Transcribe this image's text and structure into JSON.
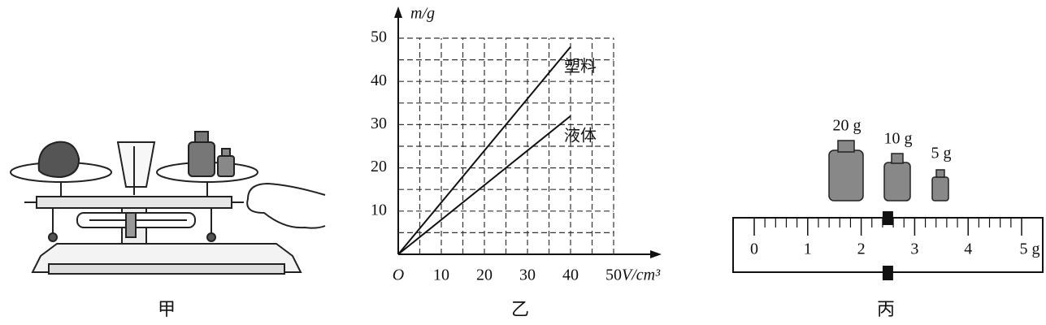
{
  "panel_a": {
    "caption": "甲"
  },
  "chart_data": {
    "type": "line",
    "caption": "乙",
    "origin_label": "O",
    "x_label": "V/cm³",
    "y_label": "m/g",
    "xlim": [
      0,
      50
    ],
    "ylim": [
      0,
      50
    ],
    "xticks": [
      10,
      20,
      30,
      40,
      50
    ],
    "yticks": [
      10,
      20,
      30,
      40,
      50
    ],
    "grid": true,
    "x": [
      0,
      40
    ],
    "series": [
      {
        "name": "塑料",
        "color": "#111111",
        "values": [
          0,
          48
        ]
      },
      {
        "name": "液体",
        "color": "#111111",
        "values": [
          0,
          32
        ]
      }
    ]
  },
  "panel_c": {
    "caption": "丙",
    "weights": [
      "20 g",
      "10 g",
      "5 g"
    ],
    "ruler_range": [
      0,
      5
    ],
    "ruler_ticks": [
      0,
      1,
      2,
      3,
      4,
      {
        "value": 5,
        "label": "5 g"
      }
    ],
    "rider": 2.4
  }
}
